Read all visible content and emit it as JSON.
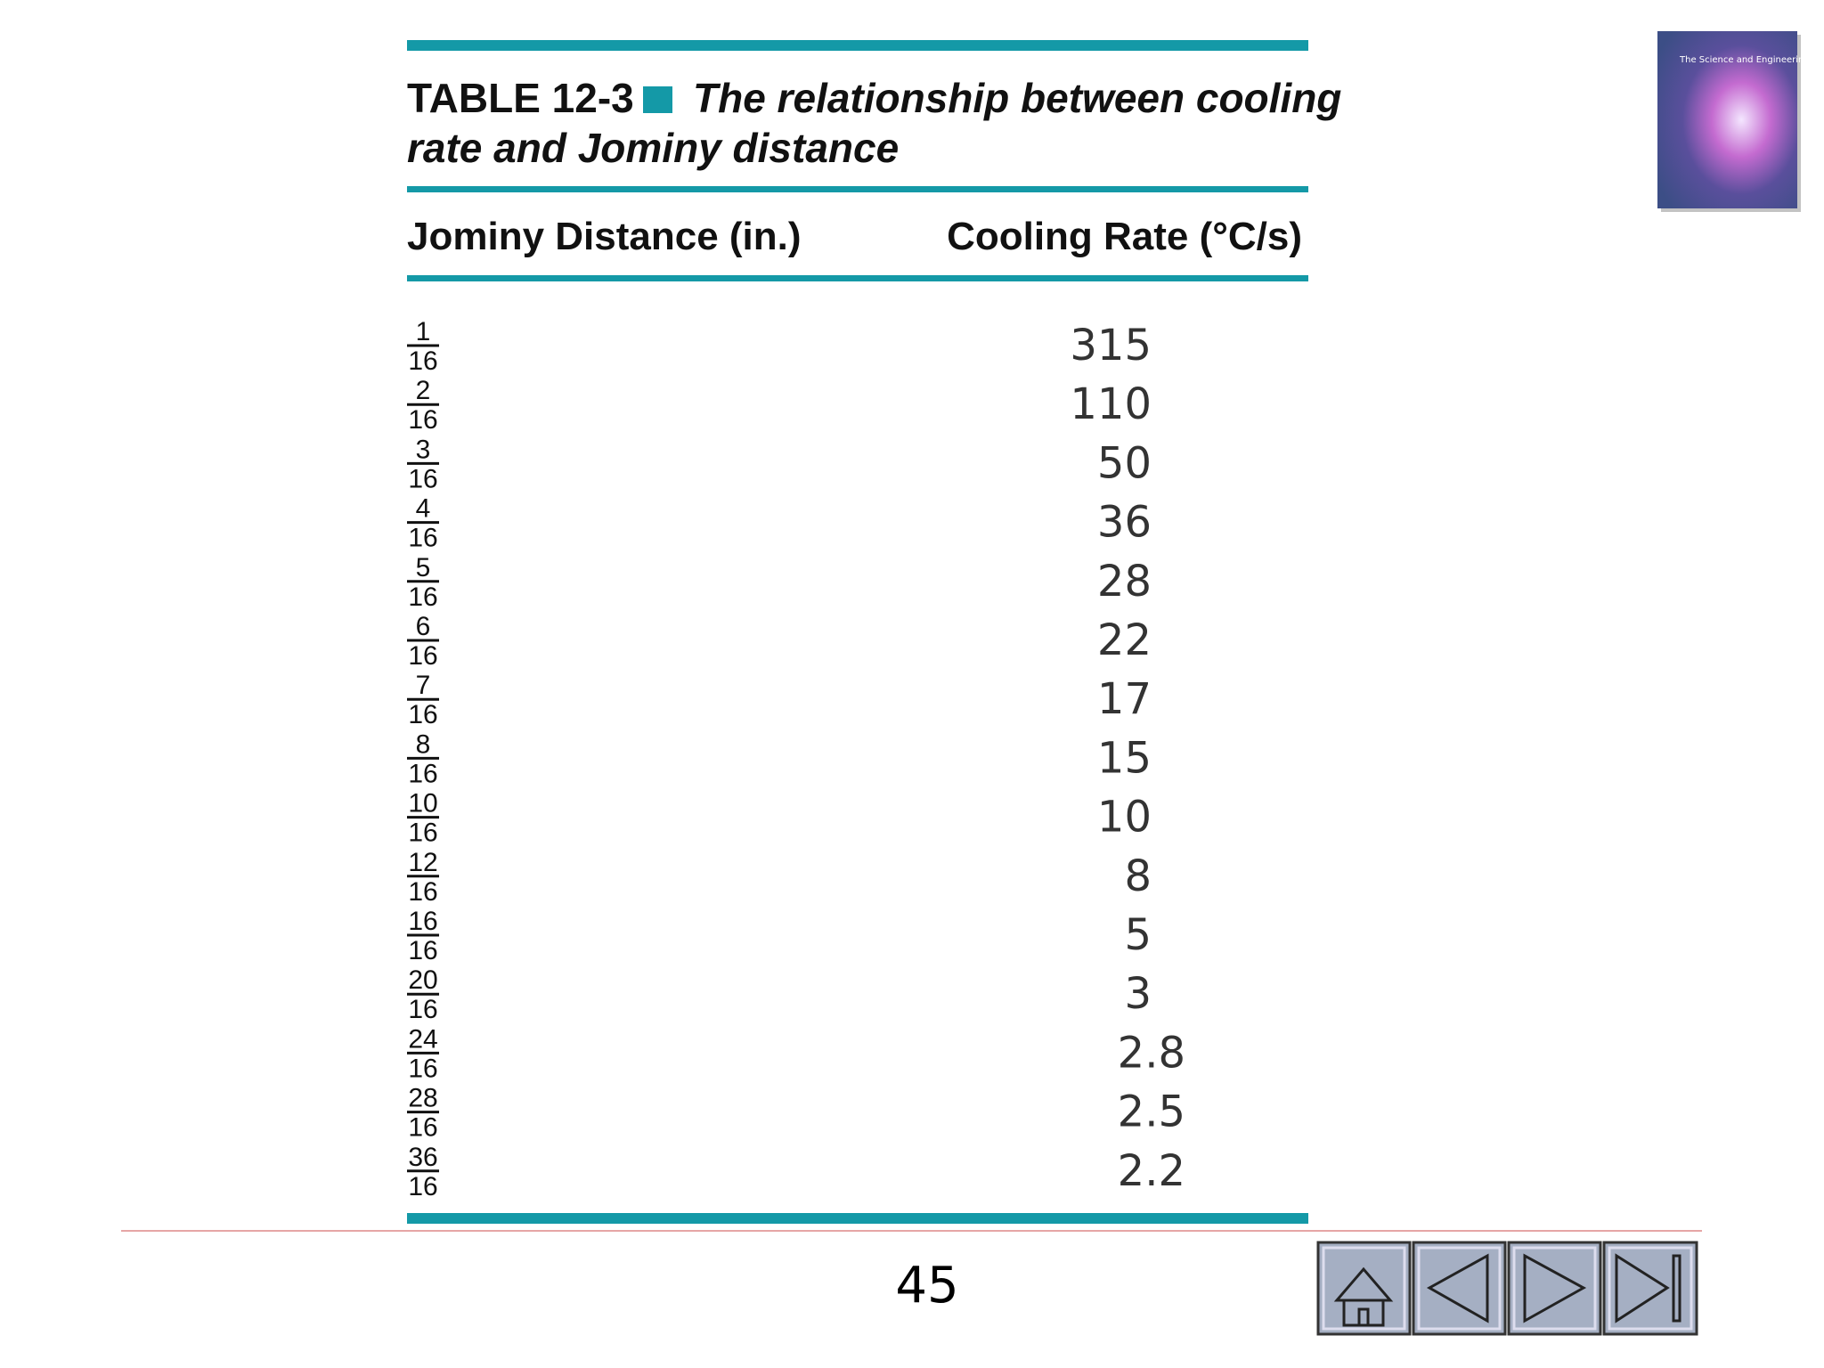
{
  "table": {
    "label": "TABLE 12-3",
    "caption_line1": "The relationship between cooling",
    "caption_line2": "rate and Jominy distance",
    "columns": [
      "Jominy Distance (in.)",
      "Cooling Rate (°C/s)"
    ],
    "rows": [
      [
        {
          "numerator": 1,
          "denominator": 16
        },
        315
      ],
      [
        {
          "numerator": 2,
          "denominator": 16
        },
        110
      ],
      [
        {
          "numerator": 3,
          "denominator": 16
        },
        50
      ],
      [
        {
          "numerator": 4,
          "denominator": 16
        },
        36
      ],
      [
        {
          "numerator": 5,
          "denominator": 16
        },
        28
      ],
      [
        {
          "numerator": 6,
          "denominator": 16
        },
        22
      ],
      [
        {
          "numerator": 7,
          "denominator": 16
        },
        17
      ],
      [
        {
          "numerator": 8,
          "denominator": 16
        },
        15
      ],
      [
        {
          "numerator": 10,
          "denominator": 16
        },
        10
      ],
      [
        {
          "numerator": 12,
          "denominator": 16
        },
        8
      ],
      [
        {
          "numerator": 16,
          "denominator": 16
        },
        5
      ],
      [
        {
          "numerator": 20,
          "denominator": 16
        },
        3
      ],
      [
        {
          "numerator": 24,
          "denominator": 16
        },
        2.8
      ],
      [
        {
          "numerator": 28,
          "denominator": 16
        },
        2.5
      ],
      [
        {
          "numerator": 36,
          "denominator": 16
        },
        2.2
      ]
    ]
  },
  "cover": {
    "title": "The Science and Engineering of Materials"
  },
  "footer": {
    "page_number": 45
  }
}
